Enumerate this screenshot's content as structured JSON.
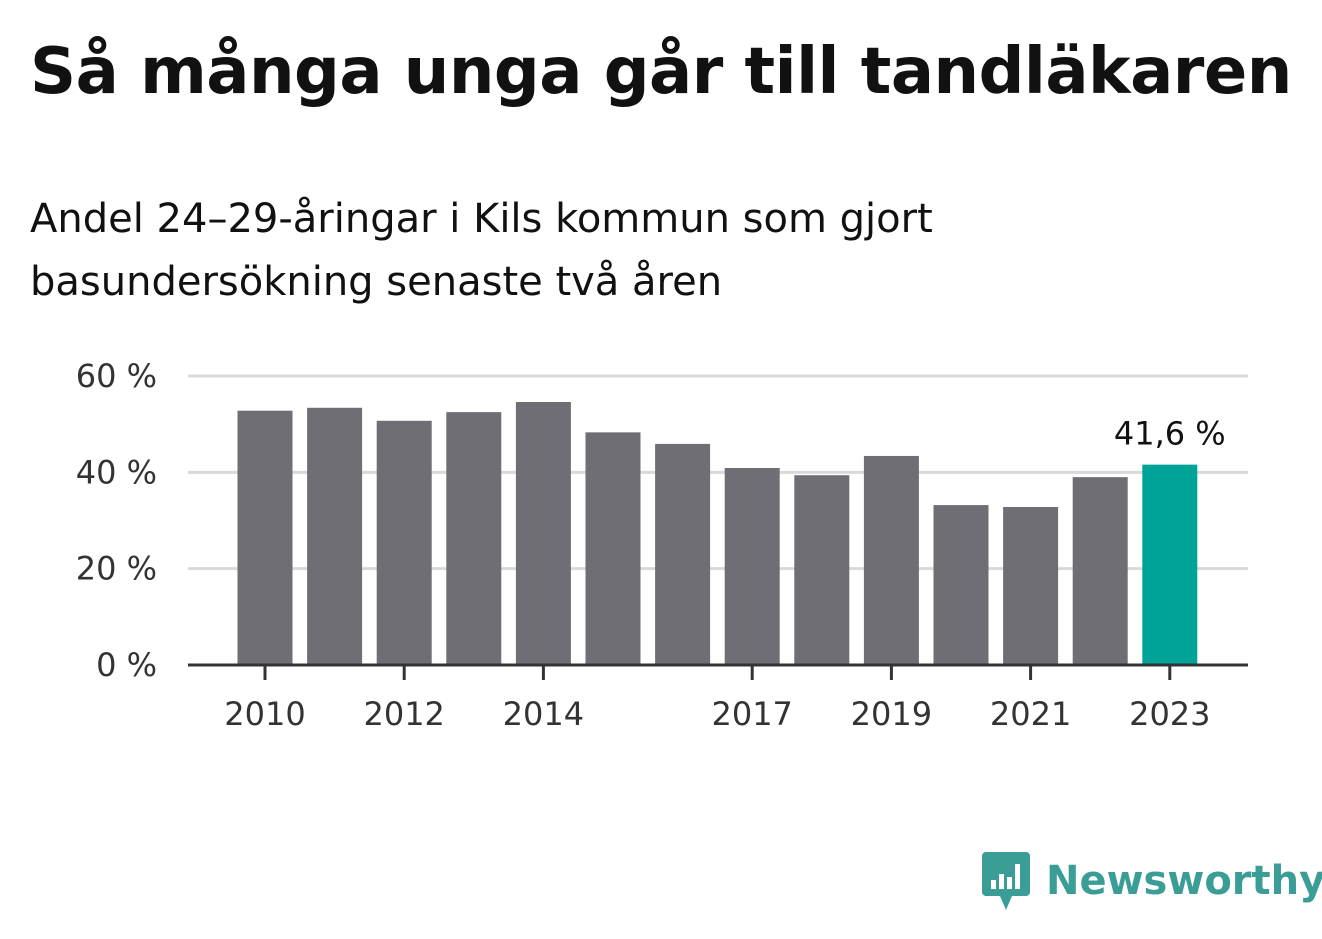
{
  "title": "Så många unga går till tandläkaren",
  "subtitle": "Andel 24–29-åringar i Kils kommun som gjort basundersökning senaste två åren",
  "brand": {
    "name": "Newsworthy",
    "icon": "newsworthy-logo-icon",
    "color": "#3a9e96"
  },
  "chart_data": {
    "type": "bar",
    "categories": [
      "2010",
      "2011",
      "2012",
      "2013",
      "2014",
      "2015",
      "2016",
      "2017",
      "2018",
      "2019",
      "2020",
      "2021",
      "2022",
      "2023"
    ],
    "values": [
      52.8,
      53.4,
      50.7,
      52.5,
      54.6,
      48.3,
      45.9,
      40.9,
      39.4,
      43.4,
      33.2,
      32.8,
      39.0,
      41.6
    ],
    "x_tick_labels": [
      "2010",
      "2012",
      "2014",
      "2017",
      "2019",
      "2021",
      "2023"
    ],
    "y_ticks": [
      0,
      20,
      40,
      60
    ],
    "y_tick_labels": [
      "0 %",
      "20 %",
      "40 %",
      "60 %"
    ],
    "ylim": [
      0,
      60
    ],
    "grid": true,
    "highlight_index": 13,
    "highlight_label": "41,6 %",
    "colors": {
      "bar": "#6f6e74",
      "highlight": "#00a398",
      "grid": "#d9d9d9",
      "axis": "#333333"
    }
  }
}
